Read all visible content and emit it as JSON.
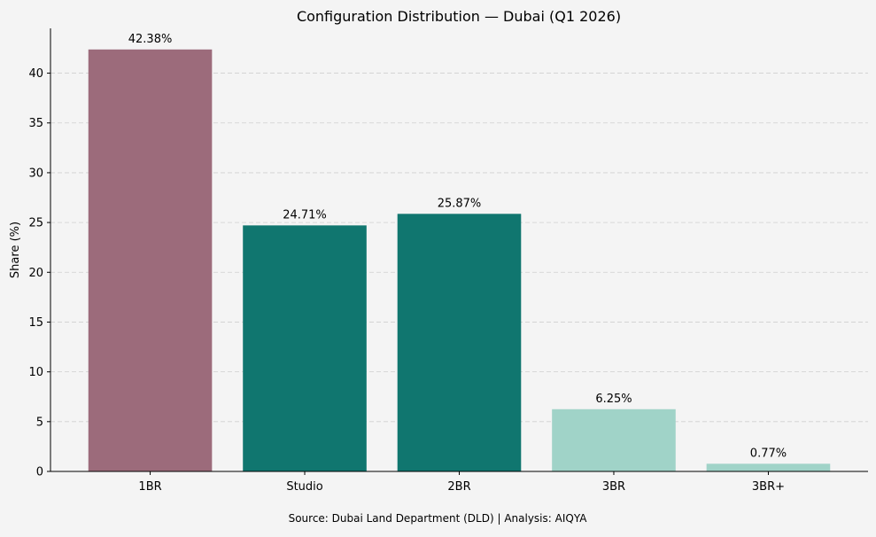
{
  "chart_data": {
    "type": "bar",
    "title": "Configuration Distribution — Dubai (Q1 2026)",
    "xlabel": "",
    "ylabel": "Share (%)",
    "categories": [
      "1BR",
      "Studio",
      "2BR",
      "3BR",
      "3BR+"
    ],
    "values": [
      42.38,
      24.71,
      25.87,
      6.25,
      0.77
    ],
    "data_labels": [
      "42.38%",
      "24.71%",
      "25.87%",
      "6.25%",
      "0.77%"
    ],
    "colors": [
      "#9c6b7b",
      "#10766f",
      "#10766f",
      "#a0d3c8",
      "#a0d3c8"
    ],
    "ylim": [
      0,
      44.5
    ],
    "yticks": [
      0,
      5,
      10,
      15,
      20,
      25,
      30,
      35,
      40
    ],
    "grid": "y-dashed",
    "legend": "none",
    "footnote": "Source: Dubai Land Department (DLD) | Analysis: AIQYA"
  }
}
